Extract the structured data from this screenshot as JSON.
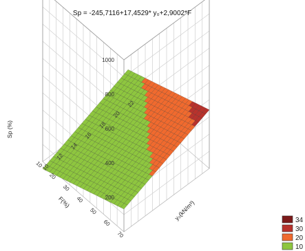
{
  "chart_data": {
    "type": "surface3d",
    "title": "Sp = -245,7116+17,4529* y₀+2,9002*F",
    "equation": {
      "intercept": -245.7116,
      "coef_y0": 17.4529,
      "coef_F": 2.9002
    },
    "x_axis": {
      "label": "y₀(kN/m³)",
      "ticks": [
        "10",
        "12",
        "14",
        "16",
        "18",
        "20",
        "22"
      ],
      "range": [
        10,
        22
      ]
    },
    "y_axis": {
      "label": "F(%)",
      "ticks": [
        "10",
        "20",
        "30",
        "40",
        "50",
        "60",
        "70"
      ],
      "range": [
        10,
        70
      ]
    },
    "z_axis": {
      "label": "Sp (%)",
      "ticks": [
        "200",
        "400",
        "600",
        "800",
        "1000"
      ],
      "range": [
        0,
        1000
      ]
    },
    "levels": [
      {
        "label": "34",
        "color": "#7c1a1a"
      },
      {
        "label": "30",
        "color": "#b8322c"
      },
      {
        "label": "20",
        "color": "#f06a2e"
      },
      {
        "label": "10",
        "color": "#8ec63f"
      }
    ],
    "grid": true,
    "legend_position": "bottom-right"
  }
}
